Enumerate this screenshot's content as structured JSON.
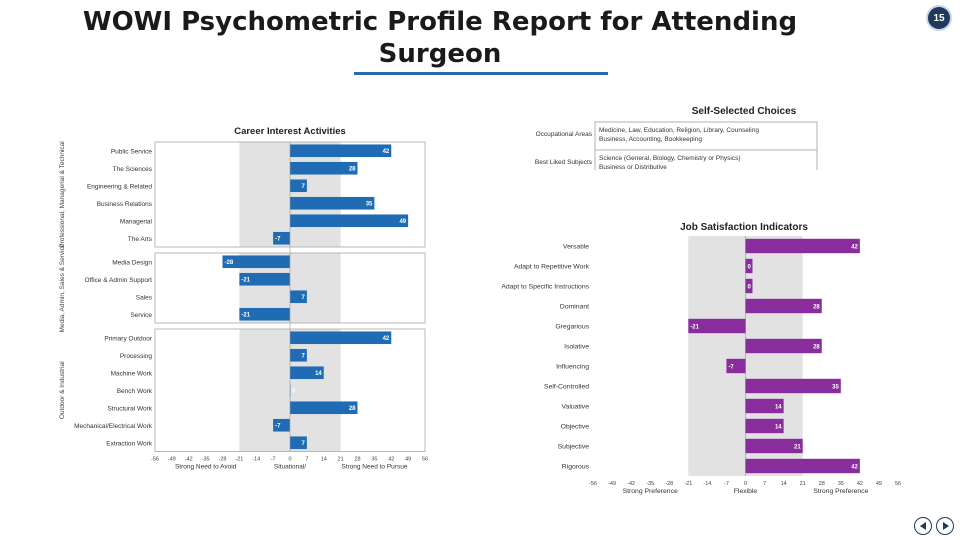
{
  "page": {
    "title": "WOWI Psychometric Profile Report for Attending Surgeon",
    "slide_number": "15",
    "accent_color": "#2a6ab0"
  },
  "chart_data": [
    {
      "type": "bar",
      "orientation": "horizontal",
      "title": "Career Interest Activities",
      "bar_color": "#1f6cb5",
      "groups": [
        {
          "label": "Professional, Managerial & Technical",
          "categories": [
            "Public Service",
            "The Sciences",
            "Engineering & Related",
            "Business Relations",
            "Managerial",
            "The Arts"
          ],
          "values": [
            42,
            28,
            7,
            35,
            49,
            -7
          ]
        },
        {
          "label": "Media, Admin, Sales & Service",
          "categories": [
            "Media Design",
            "Office & Admin Support",
            "Sales",
            "Service"
          ],
          "values": [
            -28,
            -21,
            7,
            -21
          ]
        },
        {
          "label": "Outdoor & Industrial",
          "categories": [
            "Primary Outdoor",
            "Processing",
            "Machine Work",
            "Bench Work",
            "Structural Work",
            "Mechanical/Electrical Work",
            "Extraction Work"
          ],
          "values": [
            42,
            7,
            14,
            0,
            28,
            -7,
            7
          ]
        }
      ],
      "xlim": [
        -56,
        56
      ],
      "xticks": [
        -56,
        -49,
        -42,
        -35,
        -28,
        -21,
        -14,
        -7,
        0,
        7,
        14,
        21,
        28,
        35,
        42,
        49,
        56
      ],
      "shaded_band": [
        -21,
        21
      ],
      "axis_labels": [
        "Strong Need to Avoid",
        "Situational/ Domain Specific",
        "Strong Need to Pursue"
      ]
    },
    {
      "type": "table",
      "title": "Self-Selected Choices",
      "rows": [
        {
          "label": "Occupational Areas",
          "lines": [
            "Medicine, Law, Education, Religion, Library, Counseling",
            "Business, Accounting, Bookkeeping"
          ]
        },
        {
          "label": "Best Liked Subjects",
          "lines": [
            "Science (General, Biology, Chemistry or Physics)",
            "Business or Distributive"
          ]
        }
      ]
    },
    {
      "type": "bar",
      "orientation": "horizontal",
      "title": "Job Satisfaction Indicators",
      "bar_color": "#8a2d9c",
      "categories": [
        "Versatile",
        "Adapt to Repetitive Work",
        "Adapt to Specific Instructions",
        "Dominant",
        "Gregarious",
        "Isolative",
        "Influencing",
        "Self-Controlled",
        "Valuative",
        "Objective",
        "Subjective",
        "Rigorous"
      ],
      "values": [
        42,
        0,
        0,
        28,
        -21,
        28,
        -7,
        35,
        14,
        14,
        21,
        42
      ],
      "xlim": [
        -56,
        56
      ],
      "xticks": [
        -56,
        -49,
        -42,
        -35,
        -28,
        -21,
        -14,
        -7,
        0,
        7,
        14,
        21,
        28,
        35,
        42,
        49,
        56
      ],
      "shaded_band": [
        -21,
        21
      ],
      "axis_labels": [
        "Strong Preference",
        "Flexible",
        "Strong Preference"
      ]
    }
  ]
}
